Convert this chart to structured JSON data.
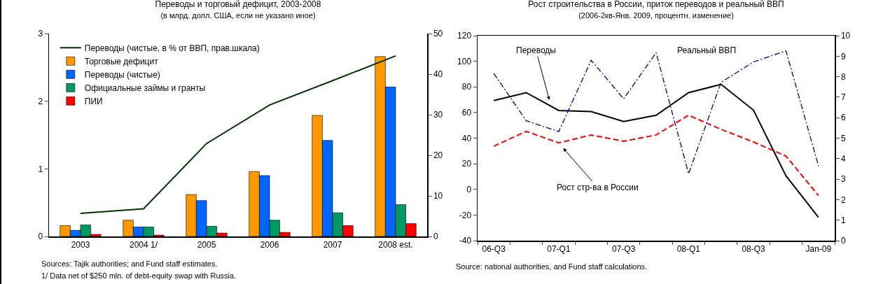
{
  "chart_data": [
    {
      "type": "bar",
      "title": "Переводы и торговый дефицит, 2003-2008",
      "subtitle": "(в млрд. долл. США, если не указано иное)",
      "categories": [
        "2003",
        "2004 1/",
        "2005",
        "2006",
        "2007",
        "2008 est."
      ],
      "series": [
        {
          "name": "Переводы (чистые, в % от ВВП, прав.шкала)",
          "type": "line",
          "axis": "y2",
          "color": "#003300",
          "values": [
            5.7,
            6.8,
            22.9,
            32.4,
            38.4,
            44.5
          ]
        },
        {
          "name": "Торговые дефицит",
          "color": "#ff9900",
          "values": [
            0.16,
            0.24,
            0.62,
            0.96,
            1.79,
            2.66
          ]
        },
        {
          "name": "Переводы (чистые)",
          "color": "#0066ff",
          "values": [
            0.09,
            0.14,
            0.53,
            0.9,
            1.42,
            2.21
          ]
        },
        {
          "name": "Официальные займы и гранты",
          "color": "#009966",
          "values": [
            0.17,
            0.14,
            0.15,
            0.24,
            0.35,
            0.47
          ]
        },
        {
          "name": "ПИИ",
          "color": "#ff0000",
          "values": [
            0.03,
            0.02,
            0.05,
            0.06,
            0.16,
            0.19
          ]
        }
      ],
      "ylim": [
        0,
        3
      ],
      "yticks": [
        0,
        1,
        2,
        3
      ],
      "y2lim": [
        0,
        50
      ],
      "y2ticks": [
        0,
        10,
        20,
        30,
        40,
        50
      ],
      "legend": "top left",
      "marker": "none",
      "annotations": [
        "Sources: Tajik authorities; and Fund staff estimates.",
        "1/ Data net of $250 mln. of debt-equity swap with Russia."
      ]
    },
    {
      "type": "line",
      "title": "Рост строительства в России, приток переводов и реальный ВВП",
      "subtitle": "(2006-2кв-Янв. 2009, процентн. изменение)",
      "categories": [
        "06-Q3",
        null,
        "07-Q1",
        null,
        "07-Q3",
        null,
        "08-Q1",
        null,
        "08-Q3",
        null,
        "Jan-09"
      ],
      "series": [
        {
          "color": "#000000",
          "line_style": "solid",
          "values": [
            69.3,
            75.5,
            61.6,
            60.7,
            53,
            57.9,
            75.5,
            82,
            61.8,
            10.6,
            -21.8
          ]
        },
        {
          "color": "#ff0000",
          "line_style": "dashed",
          "values": [
            33.7,
            45.3,
            36.3,
            42.5,
            37.6,
            42.5,
            57.9,
            46.9,
            37,
            26,
            -4.8
          ]
        },
        {
          "color": "#000099",
          "line_style": "dashdot",
          "axis": "y2",
          "values": [
            8.16,
            5.85,
            5.32,
            8.8,
            6.92,
            9.17,
            3.26,
            7.72,
            8.72,
            9.26,
            3.65
          ]
        }
      ],
      "ylim": [
        -40,
        120
      ],
      "yticks": [
        -40,
        -20,
        0,
        20,
        40,
        60,
        80,
        100,
        120
      ],
      "y2lim": [
        0,
        10
      ],
      "y2ticks": [
        0,
        1,
        2,
        3,
        4,
        5,
        6,
        7,
        8,
        9,
        10
      ],
      "legend": false,
      "marker": "none",
      "annotations": [
        "Переводы",
        "Рост стр-ва в России",
        "Реальный ВВП",
        "Source: national authorities, and Fund staff calculations."
      ]
    }
  ]
}
